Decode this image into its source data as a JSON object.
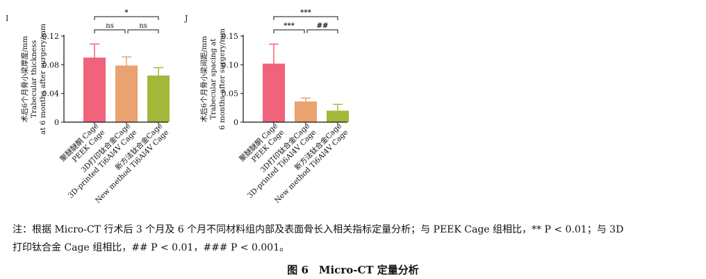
{
  "chart_data": [
    {
      "type": "bar",
      "panel_label": "I",
      "categories": [
        {
          "cn": "聚醚醚酮 Cage",
          "en": "PEEK Cage"
        },
        {
          "cn": "3D打印钛合金Cage",
          "en": "3D-printed Ti6Al4V Cage"
        },
        {
          "cn": "新方法钛合金Cage",
          "en": "New method Ti6Al4V Cage"
        }
      ],
      "values": [
        0.09,
        0.079,
        0.065
      ],
      "errors": [
        0.019,
        0.012,
        0.011
      ],
      "colors": [
        "#f0637a",
        "#e9a270",
        "#a3b83a"
      ],
      "ylabel": [
        "术后6个月骨小梁厚度/mm",
        "Trabecular thickness",
        "at 6 months after surgery/mm"
      ],
      "ylim": [
        0,
        0.12
      ],
      "yticks": [
        0,
        0.04,
        0.08,
        0.12
      ],
      "ytick_labels": [
        "0",
        "0.04",
        "0.08",
        "0.12"
      ],
      "significance": [
        {
          "from": 0,
          "to": 2,
          "label": "*"
        },
        {
          "from": 0,
          "to": 1,
          "label": "ns"
        },
        {
          "from": 1,
          "to": 2,
          "label": "ns"
        }
      ]
    },
    {
      "type": "bar",
      "panel_label": "J",
      "categories": [
        {
          "cn": "聚醚醚酮 Cage",
          "en": "PEEK Cage"
        },
        {
          "cn": "3D打印钛合金Cage",
          "en": "3D-printed Ti6Al4V Cage"
        },
        {
          "cn": "新方法钛合金Cage",
          "en": "New method Ti6Al4V Cage"
        }
      ],
      "values": [
        0.102,
        0.036,
        0.02
      ],
      "errors": [
        0.034,
        0.006,
        0.011
      ],
      "colors": [
        "#f0637a",
        "#e9a270",
        "#a3b83a"
      ],
      "ylabel": [
        "术后6个月骨小梁间距/mm",
        "Trabecular spacing  at",
        "6 months after surgery/mm"
      ],
      "ylim": [
        0,
        0.15
      ],
      "yticks": [
        0,
        0.05,
        0.1,
        0.15
      ],
      "ytick_labels": [
        "0",
        "0.05",
        "0.10",
        "0.15"
      ],
      "significance": [
        {
          "from": 0,
          "to": 2,
          "label": "***"
        },
        {
          "from": 0,
          "to": 1,
          "label": "***"
        },
        {
          "from": 1,
          "to": 2,
          "label": "##"
        }
      ]
    }
  ],
  "note": {
    "line1": "注：根据 Micro-CT 行术后 3 个月及 6 个月不同材料组内部及表面骨长入相关指标定量分析；与 PEEK Cage 组相比，** P < 0.01；与 3D",
    "line2": "打印钛合金 Cage 组相比，## P < 0.01，### P < 0.001。"
  },
  "caption": "图 6　Micro-CT 定量分析"
}
